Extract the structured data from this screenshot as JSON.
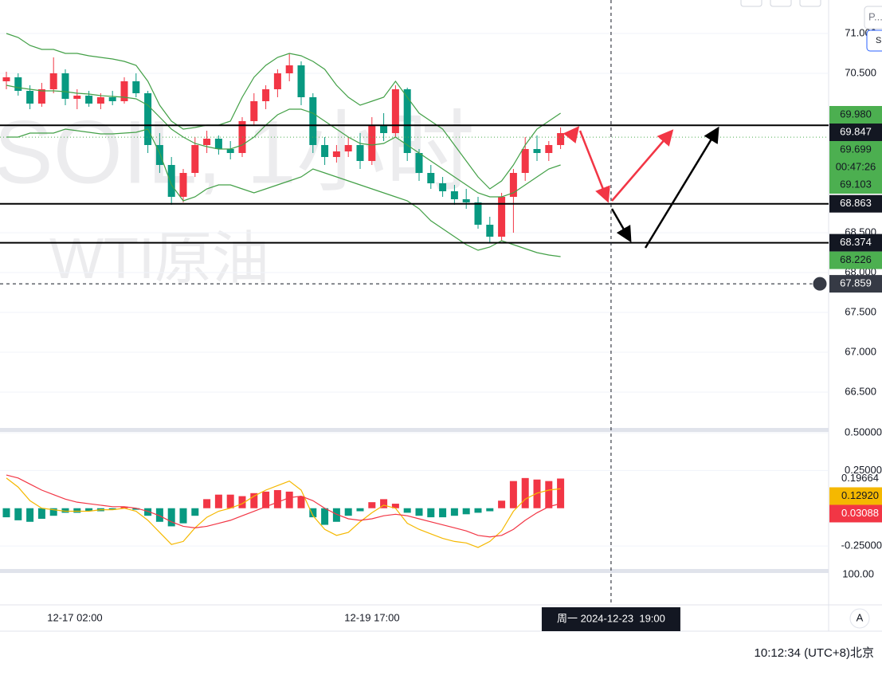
{
  "chart_data": {
    "type": "candlestick",
    "symbol_watermark": "SOIL, 1小时",
    "name_watermark": "WTI原油",
    "x": [
      0,
      1,
      2,
      3,
      4,
      5,
      6,
      7,
      8,
      9,
      10,
      11,
      12,
      13,
      14,
      15,
      16,
      17,
      18,
      19,
      20,
      21,
      22,
      23,
      24,
      25,
      26,
      27,
      28,
      29,
      30,
      31,
      32,
      33,
      34,
      35,
      36,
      37,
      38,
      39,
      40,
      41,
      42,
      43,
      44,
      45,
      46,
      47
    ],
    "xlim": [
      -0.54,
      69.73
    ],
    "xticks": [
      {
        "value": 5.81,
        "label": "12-17 02:00"
      },
      {
        "value": 31.01,
        "label": "12-19 17:00"
      }
    ],
    "open": [
      70.4,
      70.45,
      70.28,
      70.12,
      70.3,
      70.5,
      70.18,
      70.22,
      70.12,
      70.2,
      70.15,
      70.4,
      70.25,
      69.6,
      69.35,
      68.95,
      69.25,
      69.6,
      69.68,
      69.55,
      69.5,
      69.9,
      70.15,
      70.3,
      70.5,
      70.6,
      70.2,
      69.6,
      69.45,
      69.52,
      69.6,
      69.4,
      69.85,
      69.75,
      70.3,
      69.5,
      69.25,
      69.12,
      69.02,
      68.92,
      68.88,
      68.6,
      68.45,
      68.95,
      69.25,
      69.55,
      69.5,
      69.6
    ],
    "high": [
      70.52,
      70.5,
      70.35,
      70.38,
      70.7,
      70.55,
      70.3,
      70.28,
      70.25,
      70.28,
      70.45,
      70.5,
      70.28,
      69.75,
      69.45,
      69.3,
      69.7,
      69.78,
      69.72,
      69.65,
      69.95,
      70.25,
      70.35,
      70.55,
      70.75,
      70.65,
      70.25,
      69.7,
      69.6,
      69.7,
      69.75,
      69.95,
      70.0,
      70.35,
      70.32,
      69.55,
      69.35,
      69.2,
      69.1,
      69.05,
      68.95,
      68.7,
      69.0,
      69.3,
      69.7,
      69.72,
      69.65,
      69.82
    ],
    "low": [
      70.3,
      70.22,
      70.05,
      70.08,
      70.25,
      70.1,
      70.05,
      70.08,
      70.05,
      70.1,
      70.12,
      70.2,
      69.5,
      69.25,
      68.85,
      68.88,
      69.2,
      69.5,
      69.48,
      69.42,
      69.45,
      69.85,
      70.05,
      70.2,
      70.4,
      70.1,
      69.5,
      69.35,
      69.38,
      69.45,
      69.3,
      69.35,
      69.65,
      69.7,
      69.4,
      69.15,
      69.05,
      68.95,
      68.85,
      68.8,
      68.55,
      68.37,
      68.4,
      68.5,
      69.15,
      69.4,
      69.4,
      69.55
    ],
    "close": [
      70.45,
      70.28,
      70.12,
      70.3,
      70.5,
      70.18,
      70.22,
      70.12,
      70.2,
      70.15,
      70.4,
      70.25,
      69.6,
      69.35,
      68.95,
      69.25,
      69.6,
      69.68,
      69.55,
      69.5,
      69.9,
      70.15,
      70.3,
      70.5,
      70.6,
      70.2,
      69.6,
      69.45,
      69.52,
      69.6,
      69.4,
      69.85,
      69.75,
      70.3,
      69.5,
      69.25,
      69.12,
      69.02,
      68.92,
      68.88,
      68.6,
      68.45,
      68.95,
      69.25,
      69.55,
      69.5,
      69.6,
      69.75
    ],
    "up_color": "#f23645",
    "down_color": "#089981",
    "bands": [
      {
        "color": "#43a047",
        "values": [
          71.0,
          70.95,
          70.85,
          70.8,
          70.8,
          70.75,
          70.75,
          70.72,
          70.7,
          70.68,
          70.65,
          70.6,
          70.4,
          70.1,
          69.9,
          69.8,
          69.82,
          69.85,
          69.85,
          69.9,
          70.2,
          70.45,
          70.6,
          70.7,
          70.75,
          70.72,
          70.65,
          70.55,
          70.35,
          70.2,
          70.1,
          70.15,
          70.2,
          70.4,
          70.2,
          70.0,
          69.9,
          69.8,
          69.6,
          69.4,
          69.2,
          69.05,
          69.15,
          69.35,
          69.6,
          69.8,
          69.9,
          70.0
        ]
      },
      {
        "color": "#43a047",
        "values": [
          70.35,
          70.32,
          70.3,
          70.28,
          70.28,
          70.27,
          70.25,
          70.24,
          70.22,
          70.21,
          70.2,
          70.18,
          70.1,
          69.95,
          69.8,
          69.7,
          69.62,
          69.58,
          69.55,
          69.55,
          69.6,
          69.7,
          69.85,
          69.98,
          70.05,
          70.05,
          70.0,
          69.9,
          69.8,
          69.7,
          69.62,
          69.6,
          69.62,
          69.7,
          69.6,
          69.5,
          69.4,
          69.3,
          69.2,
          69.1,
          69.0,
          68.95,
          68.95,
          69.0,
          69.1,
          69.2,
          69.3,
          69.35
        ]
      },
      {
        "color": "#43a047",
        "values": [
          69.7,
          69.7,
          69.75,
          69.75,
          69.75,
          69.8,
          69.78,
          69.76,
          69.74,
          69.74,
          69.75,
          69.76,
          69.8,
          69.5,
          69.1,
          68.9,
          68.95,
          69.05,
          69.1,
          69.1,
          69.05,
          69.0,
          69.05,
          69.1,
          69.15,
          69.2,
          69.3,
          69.25,
          69.2,
          69.15,
          69.1,
          69.05,
          69.0,
          68.95,
          68.9,
          68.8,
          68.65,
          68.55,
          68.45,
          68.35,
          68.28,
          68.32,
          68.4,
          68.35,
          68.3,
          68.25,
          68.22,
          68.2
        ]
      }
    ],
    "ylim": [
      66.05,
      71.42
    ],
    "yticks": [
      {
        "value": 71,
        "label": "71.000"
      },
      {
        "value": 70.5,
        "label": "70.500"
      },
      {
        "value": 68.5,
        "label": "68.500"
      },
      {
        "value": 68,
        "label": "68.000"
      },
      {
        "value": 67.5,
        "label": "67.500"
      },
      {
        "value": 67,
        "label": "67.000"
      },
      {
        "value": 66.5,
        "label": "66.500"
      }
    ],
    "grid": true,
    "price_labels": [
      {
        "value": 69.98,
        "label": "69.980",
        "bg": "#4caf50",
        "fg": "#131722"
      },
      {
        "value": 69.847,
        "label": "69.847",
        "bg": "#131722",
        "fg": "#ffffff",
        "line": "solid"
      },
      {
        "value": 69.699,
        "label": "69.699",
        "bg": "#4caf50",
        "fg": "#131722",
        "line": "dotted",
        "countdown": "00:47:26"
      },
      {
        "value": 69.103,
        "label": "69.103",
        "bg": "#4caf50",
        "fg": "#131722"
      },
      {
        "value": 68.863,
        "label": "68.863",
        "bg": "#131722",
        "fg": "#ffffff",
        "line": "solid"
      },
      {
        "value": 68.374,
        "label": "68.374",
        "bg": "#131722",
        "fg": "#ffffff",
        "line": "solid"
      },
      {
        "value": 68.226,
        "label": "68.226",
        "bg": "#4caf50",
        "fg": "#131722"
      }
    ],
    "crosshair": {
      "x": 51.28,
      "price": {
        "value": 67.859,
        "label": "67.859"
      },
      "time_label": "周一 2024-12-23  19:00"
    },
    "macd": {
      "ylim": [
        -0.408,
        0.516
      ],
      "yticks": [
        {
          "value": 0.5,
          "label": "0.50000"
        },
        {
          "value": 0.25,
          "label": "0.25000"
        },
        {
          "value": -0.25,
          "label": "-0.25000"
        }
      ],
      "histogram": {
        "up_color": "#f23645",
        "down_color": "#089981",
        "last_label": "0.19664",
        "values": [
          -0.06,
          -0.08,
          -0.09,
          -0.07,
          -0.05,
          -0.03,
          -0.03,
          -0.02,
          -0.02,
          -0.01,
          0.01,
          -0.01,
          -0.05,
          -0.09,
          -0.12,
          -0.1,
          -0.05,
          0.06,
          0.09,
          0.09,
          0.08,
          0.1,
          0.11,
          0.12,
          0.11,
          0.08,
          -0.06,
          -0.11,
          -0.09,
          -0.05,
          -0.02,
          0.04,
          0.06,
          0.03,
          -0.03,
          -0.05,
          -0.06,
          -0.06,
          -0.05,
          -0.04,
          -0.03,
          -0.02,
          0.05,
          0.18,
          0.2,
          0.19,
          0.18,
          0.19664
        ]
      },
      "lines": [
        {
          "color": "#f5b800",
          "fg": "#131722",
          "last_label": "0.12920",
          "values": [
            0.2,
            0.14,
            0.05,
            0.0,
            -0.01,
            -0.02,
            -0.02,
            -0.02,
            -0.01,
            -0.01,
            0.0,
            -0.02,
            -0.08,
            -0.16,
            -0.24,
            -0.22,
            -0.13,
            -0.06,
            -0.02,
            0.0,
            0.03,
            0.08,
            0.12,
            0.15,
            0.18,
            0.12,
            -0.05,
            -0.14,
            -0.18,
            -0.16,
            -0.09,
            -0.03,
            0.02,
            0.0,
            -0.1,
            -0.14,
            -0.17,
            -0.2,
            -0.22,
            -0.23,
            -0.26,
            -0.22,
            -0.15,
            -0.02,
            0.06,
            0.1,
            0.12,
            0.1292
          ]
        },
        {
          "color": "#f23645",
          "fg": "#ffffff",
          "last_label": "0.03088",
          "values": [
            0.22,
            0.2,
            0.16,
            0.12,
            0.09,
            0.06,
            0.04,
            0.03,
            0.02,
            0.01,
            0.01,
            0.0,
            -0.02,
            -0.05,
            -0.09,
            -0.12,
            -0.13,
            -0.12,
            -0.1,
            -0.08,
            -0.05,
            -0.02,
            0.01,
            0.04,
            0.07,
            0.08,
            0.05,
            0.0,
            -0.04,
            -0.07,
            -0.08,
            -0.07,
            -0.05,
            -0.04,
            -0.05,
            -0.07,
            -0.09,
            -0.11,
            -0.13,
            -0.15,
            -0.18,
            -0.19,
            -0.18,
            -0.14,
            -0.08,
            -0.03,
            0.01,
            0.03088
          ]
        }
      ]
    },
    "third_pane_label": "100.00",
    "scale_button": "A",
    "clock": "10:12:34 (UTC+8)北京",
    "top_tab": "P...",
    "top_button": "S"
  }
}
